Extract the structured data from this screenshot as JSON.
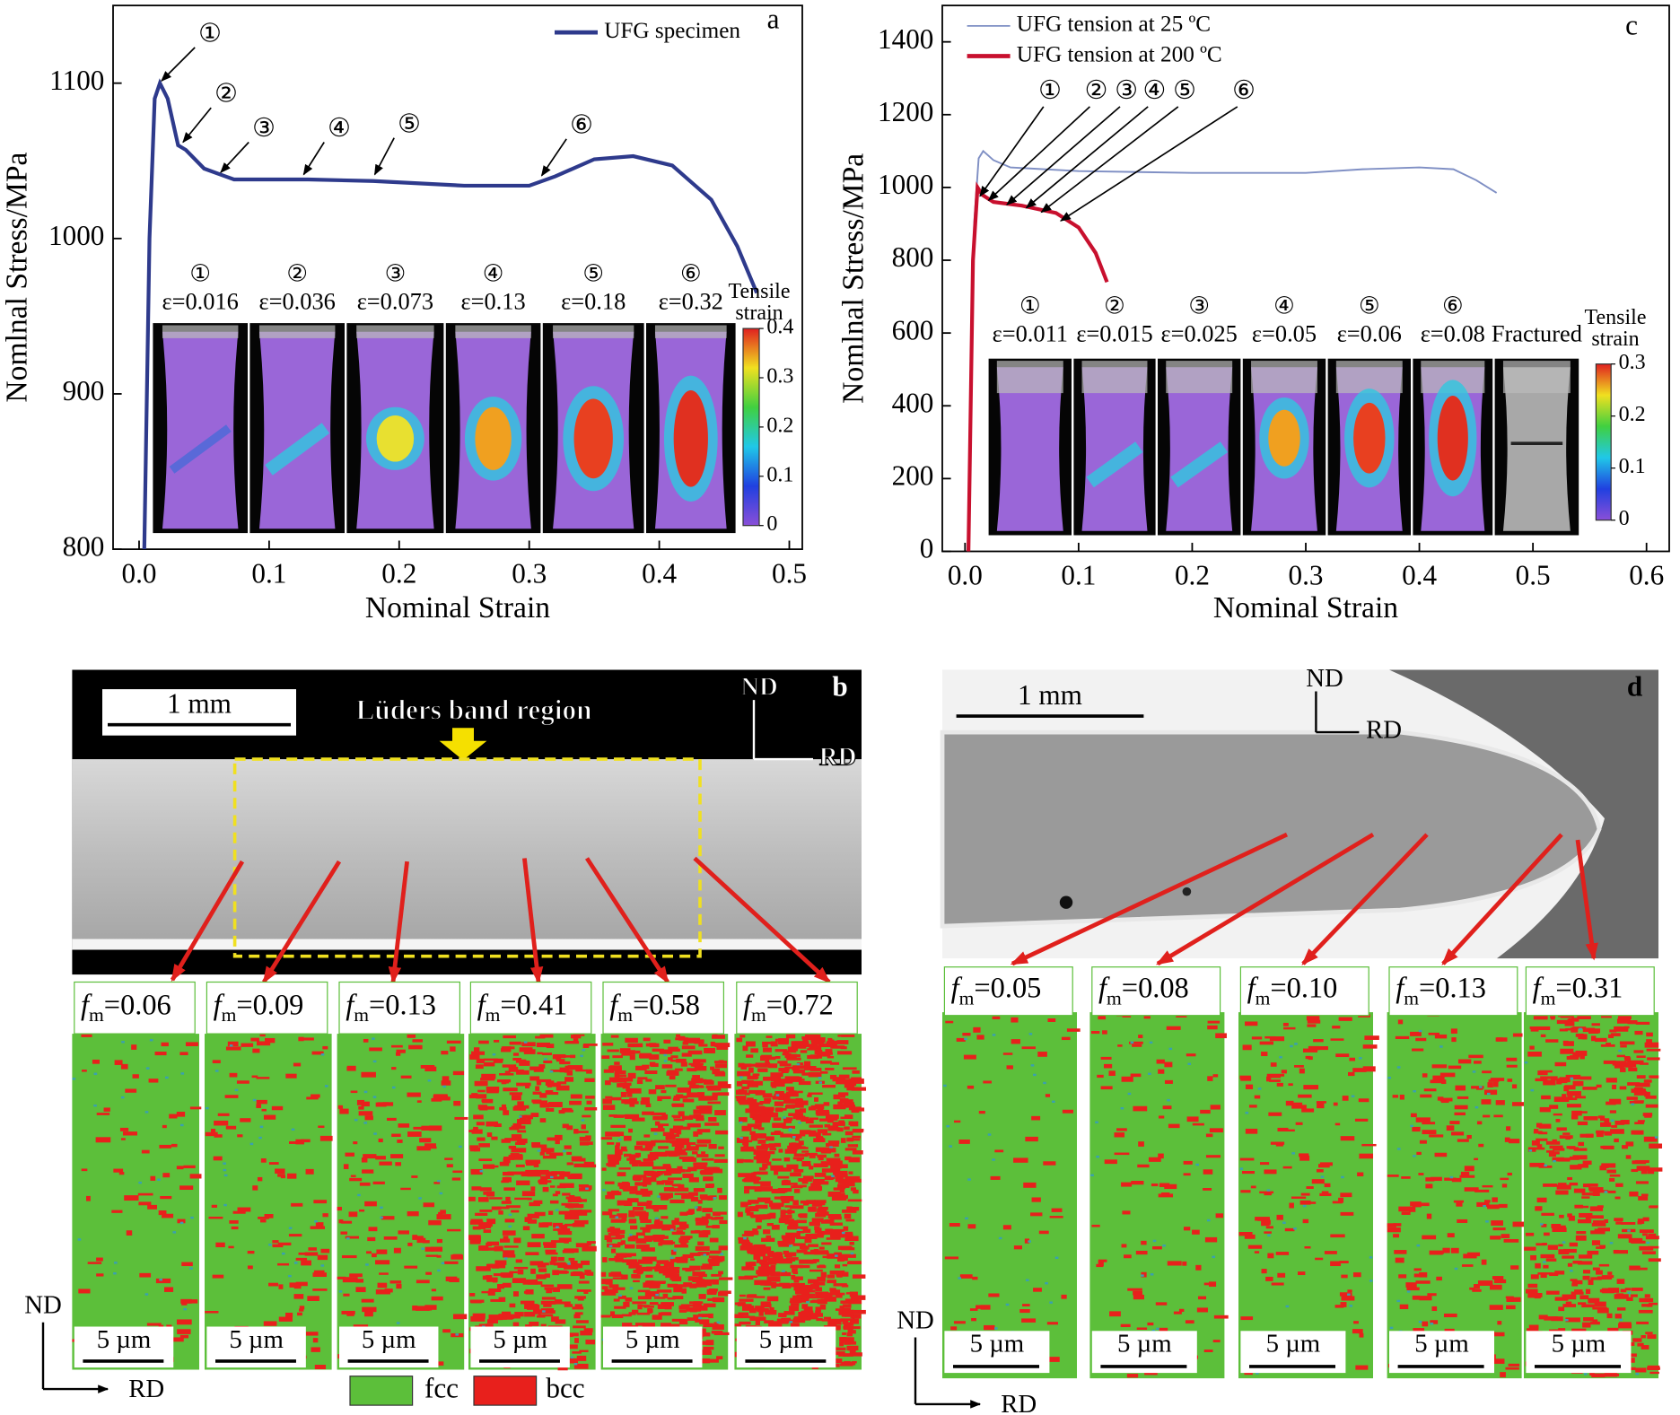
{
  "chart_data": [
    {
      "type": "line",
      "panel_label": "a",
      "xlabel": "Nominal Strain",
      "ylabel": "Nomlnal Stress/MPa",
      "xlim": [
        -0.02,
        0.51
      ],
      "xticks": [
        {
          "value": 0,
          "label": "0.0"
        },
        0.1,
        0.2,
        0.3,
        0.4,
        0.5
      ],
      "ylim": [
        800,
        1150
      ],
      "yticks": [
        800,
        900,
        1000,
        1100
      ],
      "series": [
        {
          "name": "UFG specimen",
          "color": "#2e3a8c",
          "x": [
            0.004,
            0.008,
            0.012,
            0.016,
            0.022,
            0.03,
            0.036,
            0.05,
            0.073,
            0.13,
            0.18,
            0.25,
            0.3,
            0.32,
            0.35,
            0.38,
            0.41,
            0.44,
            0.46,
            0.475
          ],
          "values": [
            800,
            1000,
            1090,
            1100,
            1090,
            1060,
            1057,
            1045,
            1038,
            1038,
            1037,
            1034,
            1034,
            1040,
            1051,
            1053,
            1047,
            1025,
            995,
            965
          ]
        }
      ],
      "annotations": [
        "①",
        "②",
        "③",
        "④",
        "⑤",
        "⑥"
      ],
      "inset": {
        "circled": [
          "①",
          "②",
          "③",
          "④",
          "⑤",
          "⑥"
        ],
        "strains": [
          "ε=0.016",
          "ε=0.036",
          "ε=0.073",
          "ε=0.13",
          "ε=0.18",
          "ε=0.32"
        ],
        "colorbar_title": [
          "Tensile",
          "strain"
        ],
        "colorbar_ticks": [
          0,
          0.1,
          0.2,
          0.3,
          0.4
        ]
      }
    },
    {
      "type": "line",
      "panel_label": "c",
      "xlabel": "Nominal Strain",
      "ylabel": "Nomlnal Stress/MPa",
      "xlim": [
        -0.02,
        0.62
      ],
      "xticks": [
        {
          "value": 0,
          "label": "0.0"
        },
        0.1,
        0.2,
        0.3,
        0.4,
        0.5,
        0.6
      ],
      "ylim": [
        0,
        1500
      ],
      "yticks": [
        0,
        200,
        400,
        600,
        800,
        1000,
        1200,
        1400
      ],
      "series": [
        {
          "name": "UFG tension at 25 ºC",
          "color": "#7f8fc4",
          "x": [
            0.003,
            0.008,
            0.012,
            0.016,
            0.025,
            0.04,
            0.1,
            0.2,
            0.3,
            0.35,
            0.4,
            0.43,
            0.45,
            0.468
          ],
          "values": [
            0,
            900,
            1080,
            1100,
            1075,
            1055,
            1045,
            1040,
            1040,
            1050,
            1055,
            1050,
            1020,
            985
          ]
        },
        {
          "name": "UFG tension at 200 ºC",
          "color": "#c8102e",
          "x": [
            0.003,
            0.007,
            0.011,
            0.015,
            0.025,
            0.05,
            0.08,
            0.1,
            0.115,
            0.125
          ],
          "values": [
            0,
            800,
            1000,
            980,
            960,
            950,
            930,
            890,
            820,
            740
          ]
        }
      ],
      "annotations": [
        "①",
        "②",
        "③",
        "④",
        "⑤",
        "⑥"
      ],
      "inset": {
        "circled": [
          "①",
          "②",
          "③",
          "④",
          "⑤",
          "⑥"
        ],
        "strains": [
          "ε=0.011",
          "ε=0.015",
          "ε=0.025",
          "ε=0.05",
          "ε=0.06",
          "ε=0.08",
          "Fractured"
        ],
        "colorbar_title": [
          "Tensile",
          "strain"
        ],
        "colorbar_ticks": [
          0,
          0.1,
          0.2,
          0.3
        ]
      }
    }
  ],
  "panels": [
    {
      "label": "b",
      "scale": "1 mm",
      "region": "Lüders band region",
      "nd": "ND",
      "rd": "RD",
      "symbol": "f",
      "sub": "m",
      "map_scale": "5 µm",
      "maps": [
        {
          "fm": 0.06,
          "label": "=0.06"
        },
        {
          "fm": 0.09,
          "label": "=0.09"
        },
        {
          "fm": 0.13,
          "label": "=0.13"
        },
        {
          "fm": 0.41,
          "label": "=0.41"
        },
        {
          "fm": 0.58,
          "label": "=0.58"
        },
        {
          "fm": 0.72,
          "label": "=0.72"
        }
      ],
      "legend": [
        "fcc",
        "bcc"
      ],
      "axes": [
        "ND",
        "RD"
      ]
    },
    {
      "label": "d",
      "scale": "1 mm",
      "nd": "ND",
      "rd": "RD",
      "symbol": "f",
      "sub": "m",
      "map_scale": "5 µm",
      "maps": [
        {
          "fm": 0.05,
          "label": "=0.05"
        },
        {
          "fm": 0.08,
          "label": "=0.08"
        },
        {
          "fm": 0.1,
          "label": "=0.10"
        },
        {
          "fm": 0.13,
          "label": "=0.13"
        },
        {
          "fm": 0.31,
          "label": "=0.31"
        }
      ],
      "axes": [
        "ND",
        "RD"
      ]
    }
  ]
}
